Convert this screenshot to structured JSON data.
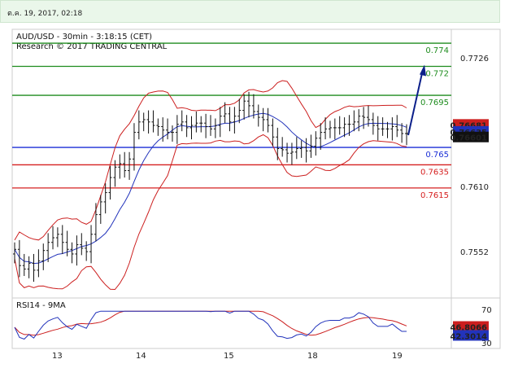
{
  "header": {
    "datetime": "ต.ค. 19, 2017, 02:18"
  },
  "chart_data": [
    {
      "type": "candlestick",
      "title": "AUD/USD - 30min - 3:18:15 (CET)",
      "subtitle": "Research © 2017 TRADING CENTRAL",
      "ylim": [
        0.752,
        0.7752
      ],
      "y_ticks": [
        "0.7726",
        "0.7668",
        "0.7610",
        "0.7552"
      ],
      "x_ticks": [
        "13",
        "14",
        "15",
        "18",
        "19"
      ],
      "levels": [
        {
          "label": "0.774",
          "value": 0.774,
          "color": "#1e8c1e",
          "kind": "resistance"
        },
        {
          "label": "0.772",
          "value": 0.772,
          "color": "#1e8c1e",
          "kind": "resistance"
        },
        {
          "label": "0.7695",
          "value": 0.7695,
          "color": "#1e8c1e",
          "kind": "resistance"
        },
        {
          "label": "0.765",
          "value": 0.765,
          "color": "#1b2fd6",
          "kind": "pivot"
        },
        {
          "label": "0.7635",
          "value": 0.7635,
          "color": "#d62020",
          "kind": "support"
        },
        {
          "label": "0.7615",
          "value": 0.7615,
          "color": "#d62020",
          "kind": "support"
        }
      ],
      "price_tags": [
        {
          "label": "0.76681",
          "value": 0.76681,
          "color": "#cc1f1f"
        },
        {
          "label": "0.76635",
          "value": 0.76635,
          "color": "#2233bb"
        },
        {
          "label": "0.76601",
          "value": 0.76601,
          "color": "#111111"
        }
      ],
      "close": [
        0.7562,
        0.7548,
        0.7545,
        0.755,
        0.7544,
        0.7552,
        0.7561,
        0.7568,
        0.7572,
        0.7575,
        0.7568,
        0.7562,
        0.7558,
        0.7566,
        0.7563,
        0.756,
        0.7575,
        0.7592,
        0.7603,
        0.7611,
        0.7624,
        0.7633,
        0.7636,
        0.763,
        0.764,
        0.7663,
        0.7672,
        0.7674,
        0.7672,
        0.7669,
        0.7668,
        0.7665,
        0.7663,
        0.7663,
        0.767,
        0.7672,
        0.7667,
        0.7669,
        0.7671,
        0.7671,
        0.7668,
        0.7666,
        0.7669,
        0.7677,
        0.7679,
        0.7672,
        0.7677,
        0.7682,
        0.769,
        0.7686,
        0.7681,
        0.7676,
        0.7674,
        0.7669,
        0.7659,
        0.7649,
        0.7648,
        0.7645,
        0.7646,
        0.7649,
        0.765,
        0.7647,
        0.7651,
        0.7658,
        0.7663,
        0.7666,
        0.7667,
        0.7667,
        0.7667,
        0.767,
        0.767,
        0.7672,
        0.7677,
        0.7676,
        0.7674,
        0.7669,
        0.7666,
        0.7666,
        0.7666,
        0.7668,
        0.7665,
        0.7662,
        0.7662
      ]
    },
    {
      "type": "line",
      "title": "RSI14 - 9MA",
      "ylim": [
        30,
        70
      ],
      "y_ticks": [
        "70",
        "30"
      ],
      "series_tags": [
        {
          "label": "46.8066",
          "value": 46.8066,
          "color": "#cc1f1f"
        },
        {
          "label": "42.3014",
          "value": 42.3014,
          "color": "#2233bb"
        }
      ],
      "x_ticks": [
        "13",
        "14",
        "15",
        "18",
        "19"
      ]
    }
  ]
}
